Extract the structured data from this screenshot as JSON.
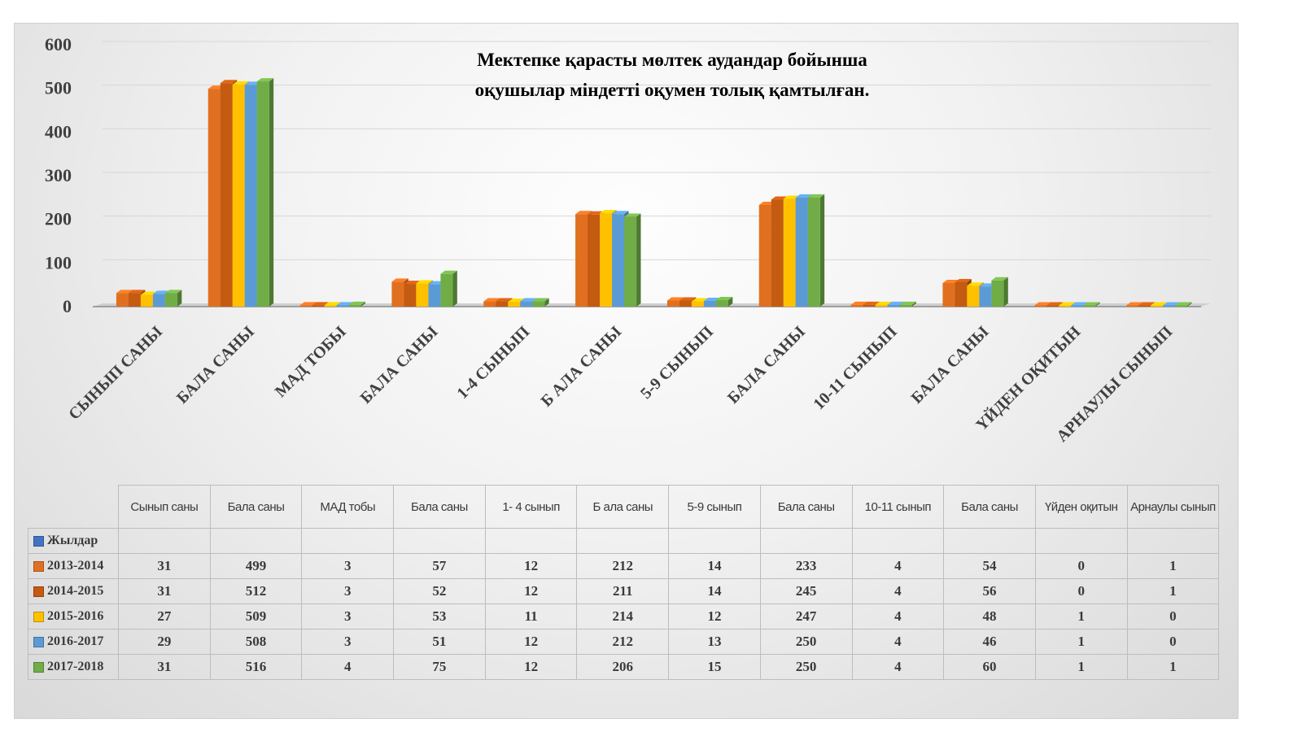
{
  "chart_data": {
    "type": "bar",
    "title": [
      "Мектепке қарасты мөлтек аудандар бойынша",
      "оқушылар міндетті оқумен толық қамтылған."
    ],
    "categories": [
      "СЫНЫП САНЫ",
      "БАЛА САНЫ",
      "МАД ТОБЫ",
      "БАЛА САНЫ",
      "1-4 СЫНЫП",
      "Б АЛА САНЫ",
      "5-9 СЫНЫП",
      "БАЛА САНЫ",
      "10-11 СЫНЫП",
      "БАЛА САНЫ",
      "ҮЙДЕН ОҚИТЫН",
      "АРНАУЛЫ СЫНЫП"
    ],
    "table_headers": [
      "Сынып саны",
      "Бала саны",
      "МАД тобы",
      "Бала саны",
      "1- 4 сынып",
      "Б ала саны",
      "5-9 сынып",
      "Бала саны",
      "10-11 сынып",
      "Бала саны",
      "Үйден оқитын",
      "Арнаулы сынып"
    ],
    "ylim": [
      0,
      600
    ],
    "yticks": [
      "0",
      "100",
      "200",
      "300",
      "400",
      "500",
      "600"
    ],
    "grid": true,
    "legend": "table",
    "series": [
      {
        "name": "Жылдар",
        "color": "#4472c4",
        "values": [
          null,
          null,
          null,
          null,
          null,
          null,
          null,
          null,
          null,
          null,
          null,
          null
        ]
      },
      {
        "name": "2013-2014",
        "color": "#e07020",
        "values": [
          31,
          499,
          3,
          57,
          12,
          212,
          14,
          233,
          4,
          54,
          0,
          1
        ]
      },
      {
        "name": "2014-2015",
        "color": "#c55a11",
        "values": [
          31,
          512,
          3,
          52,
          12,
          211,
          14,
          245,
          4,
          56,
          0,
          1
        ]
      },
      {
        "name": "2015-2016",
        "color": "#ffc000",
        "values": [
          27,
          509,
          3,
          53,
          11,
          214,
          12,
          247,
          4,
          48,
          1,
          0
        ]
      },
      {
        "name": "2016-2017",
        "color": "#5b9bd5",
        "values": [
          29,
          508,
          3,
          51,
          12,
          212,
          13,
          250,
          4,
          46,
          1,
          0
        ]
      },
      {
        "name": "2017-2018",
        "color": "#70ad47",
        "values": [
          31,
          516,
          4,
          75,
          12,
          206,
          15,
          250,
          4,
          60,
          1,
          1
        ]
      }
    ]
  }
}
